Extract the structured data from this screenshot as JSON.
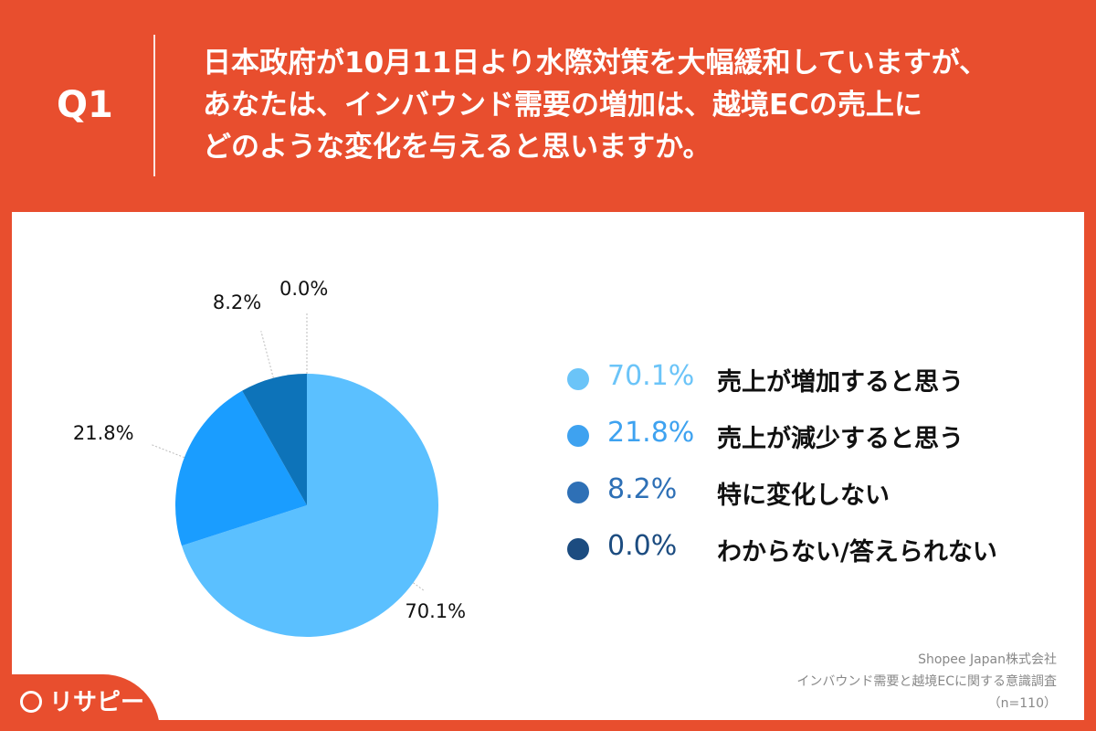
{
  "header": {
    "q_label": "Q1",
    "question_lines": [
      "日本政府が10月11日より水際対策を大幅緩和していますが、",
      "あなたは、インバウンド需要の増加は、越境ECの売上に",
      "どのような変化を与えると思いますか。"
    ]
  },
  "chart_data": {
    "type": "pie",
    "categories": [
      "売上が増加すると思う",
      "売上が減少すると思う",
      "特に変化しない",
      "わからない/答えられない"
    ],
    "values": [
      70.1,
      21.8,
      8.2,
      0.0
    ],
    "value_labels": [
      "70.1%",
      "21.8%",
      "8.2%",
      "0.0%"
    ],
    "colors": [
      "#5BC0FF",
      "#1A9DFF",
      "#0D73B9",
      "#1E4F87"
    ],
    "legend_colors": [
      "#6BC4F8",
      "#3EA2F0",
      "#2E70B6",
      "#1C4C80"
    ],
    "legend_placement": "right"
  },
  "source": {
    "company": "Shopee Japan株式会社",
    "survey": "インバウンド需要と越境ECに関する意識調査",
    "sample": "（n=110）"
  },
  "logo": {
    "text": "リサピー",
    "icon": "pin-icon"
  }
}
